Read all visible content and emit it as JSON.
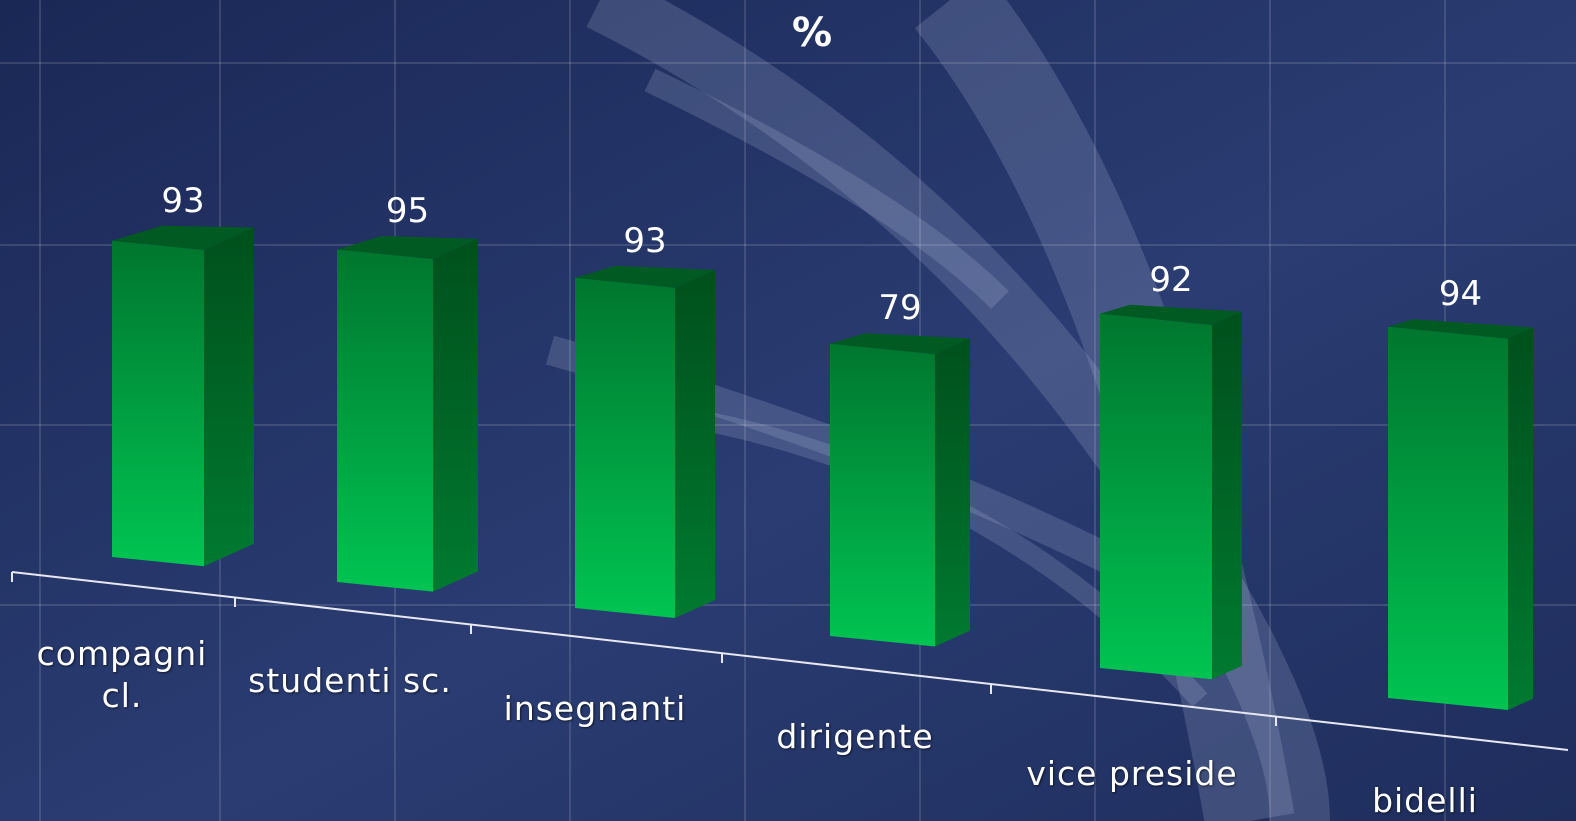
{
  "chart_data": {
    "type": "bar3d",
    "title": "%",
    "categories": [
      "compagni cl.",
      "studenti sc.",
      "insegnanti",
      "dirigente",
      "vice preside",
      "bidelli"
    ],
    "values": [
      93,
      95,
      93,
      79,
      92,
      94
    ],
    "color": "#00b84a",
    "ylim": [
      0,
      100
    ]
  }
}
